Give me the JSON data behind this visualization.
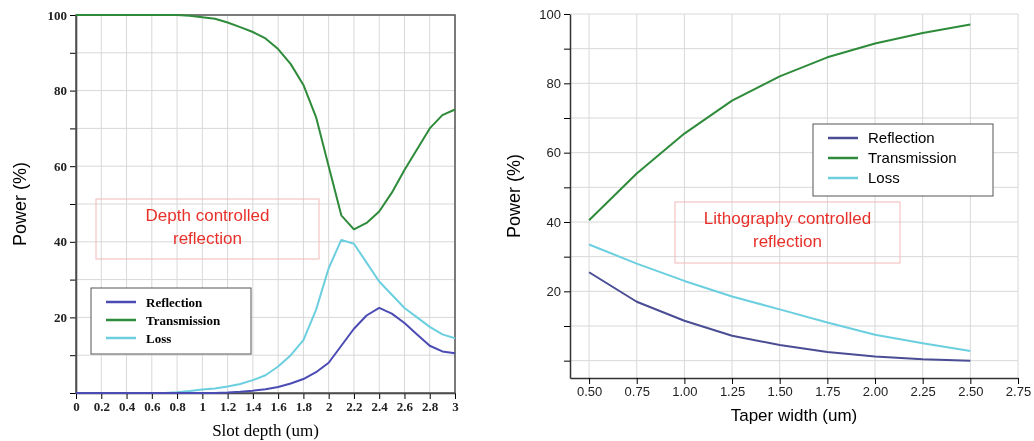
{
  "chart_data": [
    {
      "type": "line",
      "xlabel": "Slot depth (um)",
      "ylabel": "Power (%)",
      "annotations": [
        "Depth controlled reflection"
      ],
      "x": [
        0,
        0.1,
        0.2,
        0.3,
        0.4,
        0.5,
        0.6,
        0.7,
        0.8,
        0.9,
        1.0,
        1.1,
        1.2,
        1.3,
        1.4,
        1.5,
        1.6,
        1.7,
        1.8,
        1.9,
        2.0,
        2.1,
        2.2,
        2.3,
        2.4,
        2.5,
        2.6,
        2.7,
        2.8,
        2.9,
        3.0
      ],
      "series": [
        {
          "name": "Reflection",
          "color": "#4b4bb4",
          "values": [
            0,
            0,
            0,
            0,
            0,
            0,
            0,
            0,
            0,
            0,
            0,
            0,
            0.1,
            0.3,
            0.6,
            1,
            1.6,
            2.5,
            3.7,
            5.5,
            8,
            12.5,
            17,
            20.5,
            22.5,
            21,
            18.5,
            15.5,
            12.5,
            11,
            10.5
          ]
        },
        {
          "name": "Transmission",
          "color": "#2e8b3a",
          "values": [
            100,
            100,
            100,
            100,
            100,
            100,
            100,
            100,
            100,
            99.8,
            99.4,
            99,
            98,
            96.8,
            95.5,
            93.8,
            91,
            87,
            81.5,
            73,
            60,
            47,
            43.3,
            45,
            48,
            53,
            59,
            64.5,
            70,
            73.5,
            75
          ]
        },
        {
          "name": "Loss",
          "color": "#6ccfdf",
          "values": [
            null,
            null,
            null,
            null,
            null,
            null,
            null,
            0,
            0.2,
            0.5,
            0.9,
            1.2,
            1.7,
            2.4,
            3.4,
            4.7,
            7,
            10,
            14,
            22,
            33,
            40.5,
            39.5,
            34.5,
            29.5,
            26,
            22.5,
            20,
            17.5,
            15.5,
            14.5
          ]
        }
      ],
      "xlim": [
        0,
        3
      ],
      "xticks": [
        0,
        0.2,
        0.4,
        0.6,
        0.8,
        1,
        1.2,
        1.4,
        1.6,
        1.8,
        2,
        2.2,
        2.4,
        2.6,
        2.8,
        3
      ],
      "ylim": [
        0,
        100
      ],
      "yticks": [
        {
          "value": 0,
          "label": null
        },
        {
          "value": 10,
          "label": null
        },
        20,
        {
          "value": 30,
          "label": null
        },
        40,
        {
          "value": 50,
          "label": null
        },
        60,
        {
          "value": 70,
          "label": null
        },
        80,
        {
          "value": 90,
          "label": null
        },
        100
      ],
      "grid": true,
      "legend": "bottom left"
    },
    {
      "type": "line",
      "xlabel": "Taper width (um)",
      "ylabel": "Power (%)",
      "annotations": [
        "Lithography controlled reflection"
      ],
      "x": [
        0.5,
        0.75,
        1.0,
        1.25,
        1.5,
        1.75,
        2.0,
        2.25,
        2.5
      ],
      "series": [
        {
          "name": "Reflection",
          "color": "#4a4d94",
          "values": [
            25.5,
            17,
            11.5,
            7.2,
            4.5,
            2.5,
            1.2,
            0.4,
            0
          ]
        },
        {
          "name": "Transmission",
          "color": "#2e8b3a",
          "values": [
            40.5,
            54,
            65.5,
            75,
            82,
            87.5,
            91.5,
            94.5,
            97
          ]
        },
        {
          "name": "Loss",
          "color": "#6ccfdf",
          "values": [
            33.5,
            28,
            23,
            18.5,
            14.8,
            11,
            7.5,
            5,
            2.8
          ]
        }
      ],
      "xlim": [
        0.4,
        2.75
      ],
      "xticks": [
        {
          "value": 0.5,
          "label": "0.50"
        },
        {
          "value": 0.75,
          "label": "0.75"
        },
        {
          "value": 1,
          "label": "1.00"
        },
        {
          "value": 1.25,
          "label": "1.25"
        },
        {
          "value": 1.5,
          "label": "1.50"
        },
        {
          "value": 1.75,
          "label": "1.75"
        },
        {
          "value": 2,
          "label": "2.00"
        },
        {
          "value": 2.25,
          "label": "2.25"
        },
        {
          "value": 2.5,
          "label": "2.50"
        },
        {
          "value": 2.75,
          "label": "2.75"
        }
      ],
      "ylim": [
        -5,
        100
      ],
      "yticks": [
        {
          "value": 0,
          "label": null
        },
        {
          "value": 10,
          "label": null
        },
        20,
        {
          "value": 30,
          "label": null
        },
        40,
        {
          "value": 50,
          "label": null
        },
        60,
        {
          "value": 70,
          "label": null
        },
        80,
        {
          "value": 90,
          "label": null
        },
        100
      ],
      "grid": true,
      "legend": "right"
    }
  ]
}
